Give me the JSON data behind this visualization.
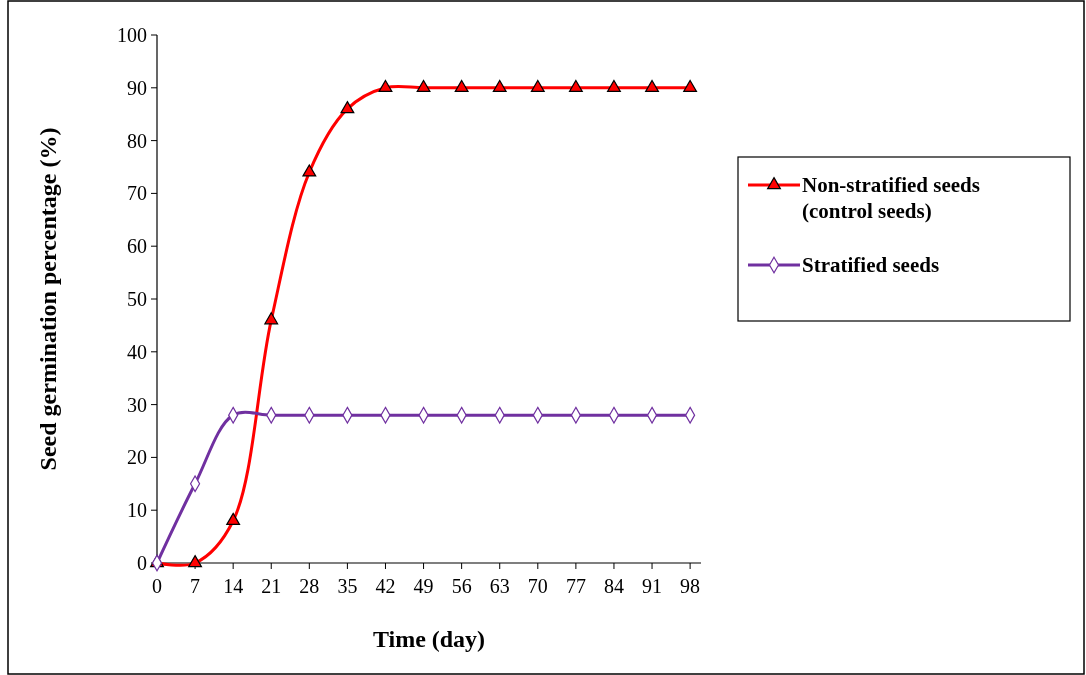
{
  "chart_data": {
    "type": "line",
    "xlabel": "Time (day)",
    "ylabel": "Seed germination percentage (%)",
    "x": [
      0,
      7,
      14,
      21,
      28,
      35,
      42,
      49,
      56,
      63,
      70,
      77,
      84,
      91,
      98
    ],
    "xlim": [
      0,
      100
    ],
    "xticks": [
      0,
      7,
      14,
      21,
      28,
      35,
      42,
      49,
      56,
      63,
      70,
      77,
      84,
      91,
      98
    ],
    "ylim": [
      0,
      100
    ],
    "yticks": [
      0,
      10,
      20,
      30,
      40,
      50,
      60,
      70,
      80,
      90,
      100
    ],
    "grid": false,
    "legend": "right",
    "line_style": "solid",
    "series": [
      {
        "name": "Non-stratified seeds (control seeds)",
        "color": "#ff0000",
        "marker": "triangle",
        "values": [
          0,
          0,
          8,
          46,
          74,
          86,
          90,
          90,
          90,
          90,
          90,
          90,
          90,
          90,
          90
        ]
      },
      {
        "name": "Stratified seeds",
        "color": "#7030a0",
        "marker": "diamond",
        "values": [
          0,
          15,
          28,
          28,
          28,
          28,
          28,
          28,
          28,
          28,
          28,
          28,
          28,
          28,
          28
        ]
      }
    ]
  }
}
